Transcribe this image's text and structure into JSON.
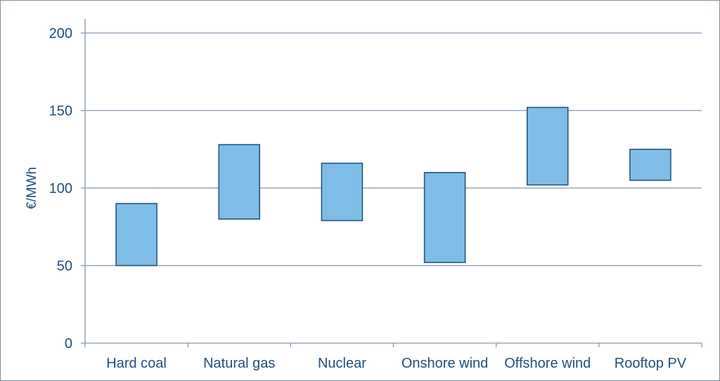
{
  "chart_data": {
    "type": "bar",
    "subtype": "floating-range",
    "title": "",
    "xlabel": "",
    "ylabel": "€/MWh",
    "ylim": [
      0,
      200
    ],
    "yticks": [
      0,
      50,
      100,
      150,
      200
    ],
    "grid": true,
    "categories": [
      "Hard coal",
      "Natural gas",
      "Nuclear",
      "Onshore wind",
      "Offshore wind",
      "Rooftop PV"
    ],
    "ranges": [
      {
        "low": 50,
        "high": 90
      },
      {
        "low": 80,
        "high": 128
      },
      {
        "low": 79,
        "high": 116
      },
      {
        "low": 52,
        "high": 110
      },
      {
        "low": 102,
        "high": 152
      },
      {
        "low": 105,
        "high": 125
      }
    ],
    "colors": {
      "bar_fill": "#7dbde8",
      "bar_stroke": "#1f4e79",
      "grid": "#8496b0",
      "axis": "#8496b0",
      "text": "#1f4e79"
    }
  }
}
